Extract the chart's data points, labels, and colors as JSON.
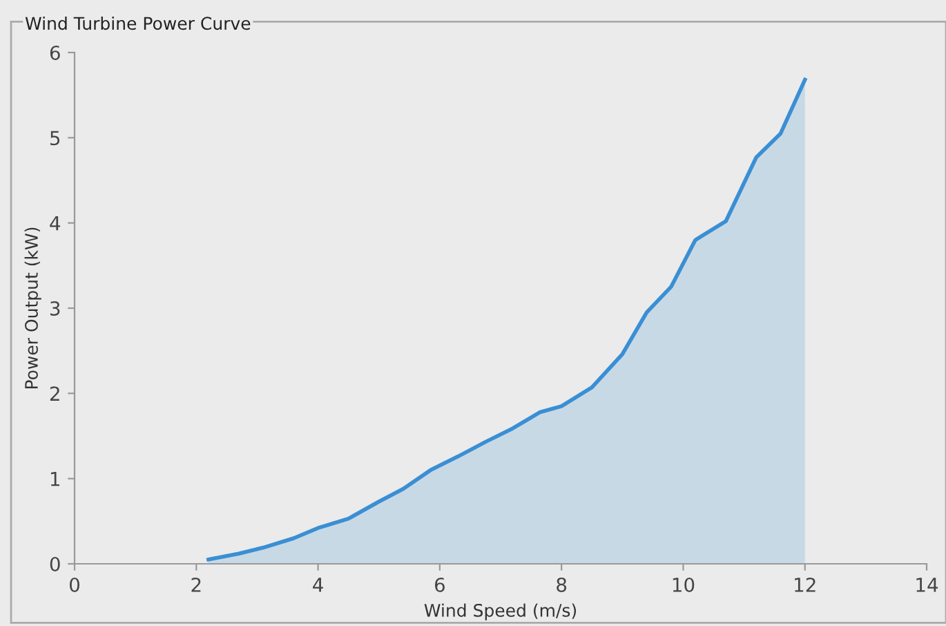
{
  "chart_data": {
    "type": "area",
    "title": "Wind Turbine Power Curve",
    "xlabel": "Wind Speed (m/s)",
    "ylabel": "Power Output (kW)",
    "x": [
      2.2,
      2.7,
      3.1,
      3.6,
      4.0,
      4.5,
      5.0,
      5.4,
      5.85,
      6.3,
      6.75,
      7.2,
      7.65,
      8.0,
      8.5,
      9.0,
      9.4,
      9.8,
      10.2,
      10.7,
      11.2,
      11.6,
      12.0
    ],
    "series": [
      {
        "color": "#3a8fd4",
        "values": [
          0.05,
          0.12,
          0.19,
          0.3,
          0.42,
          0.53,
          0.73,
          0.88,
          1.1,
          1.26,
          1.43,
          1.59,
          1.78,
          1.85,
          2.07,
          2.46,
          2.95,
          3.25,
          3.8,
          4.02,
          4.77,
          5.05,
          5.68
        ]
      }
    ],
    "xlim": [
      0,
      14
    ],
    "xticks": [
      0,
      2,
      4,
      6,
      8,
      10,
      12,
      14
    ],
    "ylim": [
      0,
      6
    ],
    "yticks": [
      0,
      1,
      2,
      3,
      4,
      5,
      6
    ],
    "grid": false,
    "legend": false
  }
}
